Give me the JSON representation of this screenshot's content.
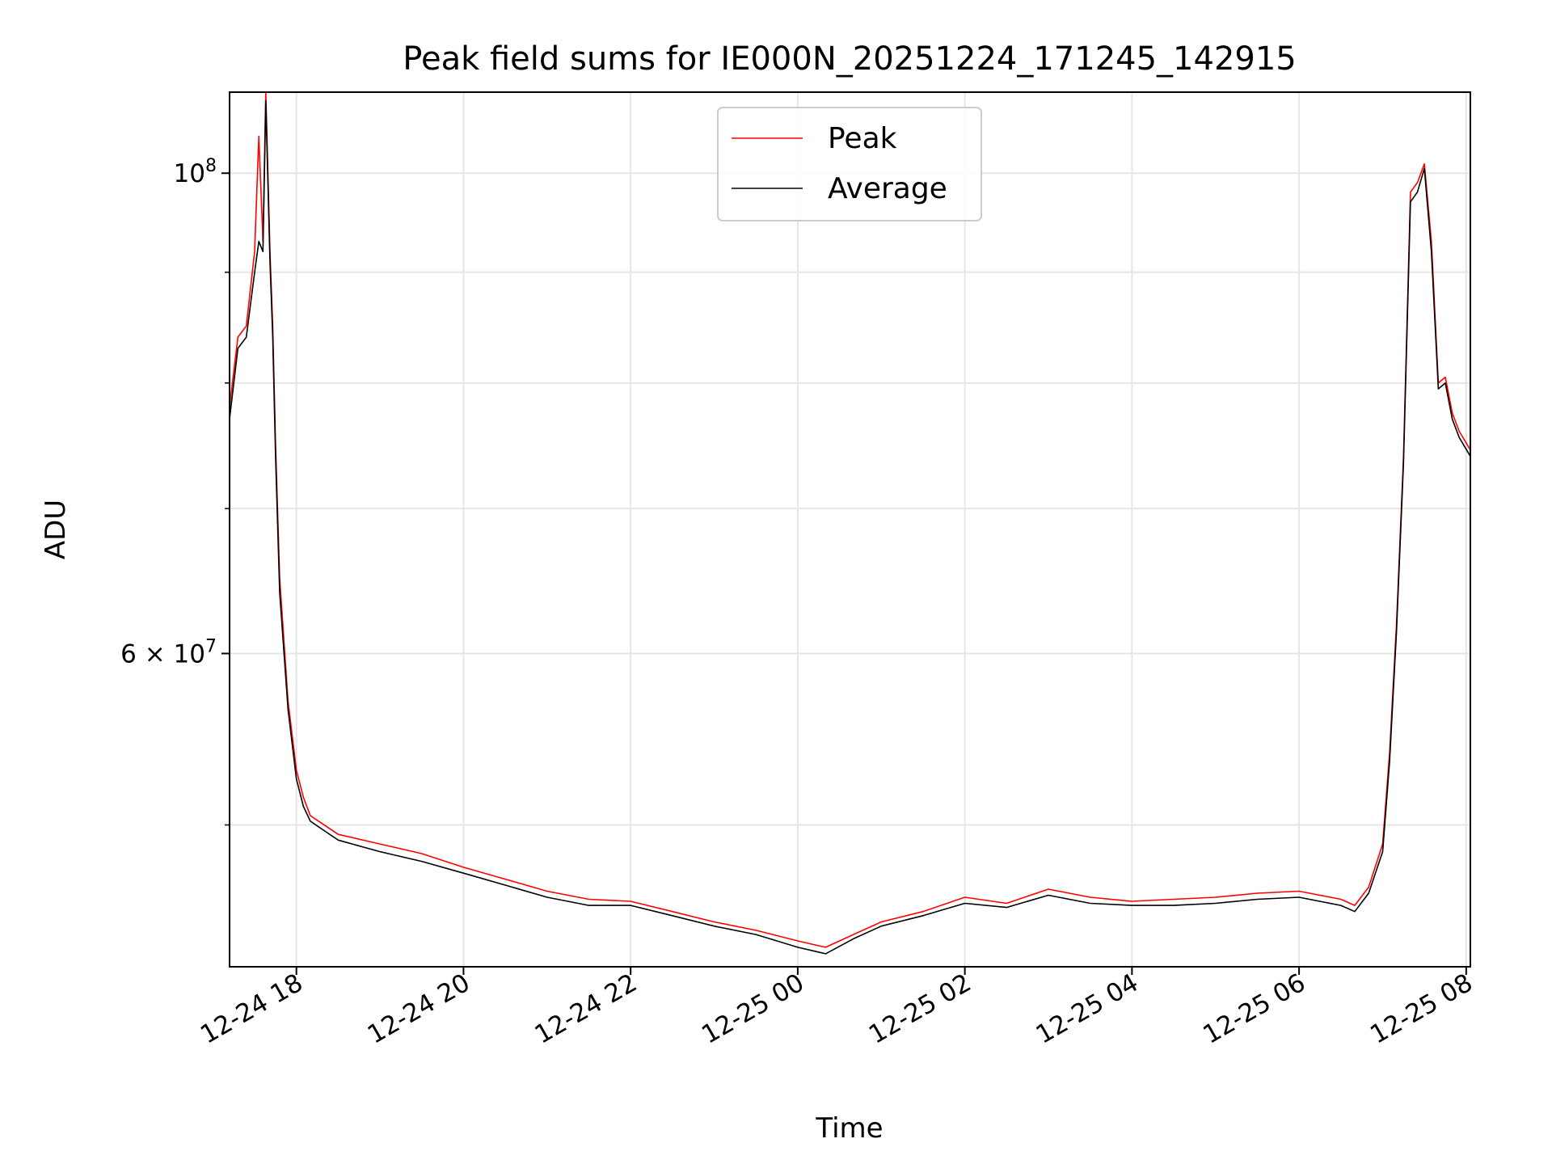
{
  "chart_data": {
    "type": "line",
    "title": "Peak field sums for IE000N_20251224_171245_142915",
    "xlabel": "Time",
    "ylabel": "ADU",
    "yscale": "log",
    "grid": true,
    "legend_position": "upper center",
    "xlim": [
      "2025-12-24 17:12",
      "2025-12-25 08:03"
    ],
    "ylim": [
      43000000,
      109000000
    ],
    "x_ticks": [
      "12-24 18",
      "12-24 20",
      "12-24 22",
      "12-25 00",
      "12-25 02",
      "12-25 04",
      "12-25 06",
      "12-25 08"
    ],
    "x_tick_times": [
      "2025-12-24 18:00",
      "2025-12-24 20:00",
      "2025-12-24 22:00",
      "2025-12-25 00:00",
      "2025-12-25 02:00",
      "2025-12-25 04:00",
      "2025-12-25 06:00",
      "2025-12-25 08:00"
    ],
    "y_ticks": [
      {
        "value": 100000000,
        "base": "10",
        "exp": "8",
        "mult": ""
      },
      {
        "value": 60000000,
        "base": "10",
        "exp": "7",
        "mult": "6 × "
      }
    ],
    "y_minor_ticks": [
      50000000,
      70000000,
      80000000,
      90000000
    ],
    "series": [
      {
        "name": "Peak",
        "color": "#ff0000",
        "x": [
          "2025-12-24 17:12",
          "2025-12-24 17:18",
          "2025-12-24 17:24",
          "2025-12-24 17:30",
          "2025-12-24 17:33",
          "2025-12-24 17:36",
          "2025-12-24 17:38",
          "2025-12-24 17:41",
          "2025-12-24 17:43",
          "2025-12-24 17:45",
          "2025-12-24 17:48",
          "2025-12-24 17:54",
          "2025-12-24 18:00",
          "2025-12-24 18:05",
          "2025-12-24 18:10",
          "2025-12-24 18:20",
          "2025-12-24 18:30",
          "2025-12-24 19:00",
          "2025-12-24 19:30",
          "2025-12-24 20:00",
          "2025-12-24 20:30",
          "2025-12-24 21:00",
          "2025-12-24 21:30",
          "2025-12-24 22:00",
          "2025-12-24 22:30",
          "2025-12-24 23:00",
          "2025-12-24 23:30",
          "2025-12-25 00:00",
          "2025-12-25 00:20",
          "2025-12-25 00:40",
          "2025-12-25 01:00",
          "2025-12-25 01:30",
          "2025-12-25 02:00",
          "2025-12-25 02:30",
          "2025-12-25 03:00",
          "2025-12-25 03:30",
          "2025-12-25 04:00",
          "2025-12-25 04:30",
          "2025-12-25 05:00",
          "2025-12-25 05:30",
          "2025-12-25 06:00",
          "2025-12-25 06:30",
          "2025-12-25 06:40",
          "2025-12-25 06:50",
          "2025-12-25 07:00",
          "2025-12-25 07:05",
          "2025-12-25 07:10",
          "2025-12-25 07:15",
          "2025-12-25 07:20",
          "2025-12-25 07:25",
          "2025-12-25 07:30",
          "2025-12-25 07:35",
          "2025-12-25 07:40",
          "2025-12-25 07:45",
          "2025-12-25 07:50",
          "2025-12-25 07:55",
          "2025-12-25 08:03"
        ],
        "values": [
          78000000,
          84000000,
          85000000,
          92000000,
          104000000,
          93000000,
          109000000,
          92000000,
          85000000,
          75000000,
          65000000,
          57000000,
          53000000,
          51500000,
          50500000,
          50000000,
          49500000,
          49000000,
          48500000,
          47800000,
          47200000,
          46600000,
          46200000,
          46100000,
          45600000,
          45100000,
          44700000,
          44200000,
          43900000,
          44500000,
          45100000,
          45600000,
          46300000,
          46000000,
          46700000,
          46300000,
          46100000,
          46200000,
          46300000,
          46500000,
          46600000,
          46200000,
          45900000,
          46800000,
          49000000,
          54000000,
          62000000,
          74000000,
          98000000,
          99000000,
          101000000,
          93000000,
          80000000,
          80500000,
          77500000,
          76000000,
          74500000
        ]
      },
      {
        "name": "Average",
        "color": "#000000",
        "x": [
          "2025-12-24 17:12",
          "2025-12-24 17:18",
          "2025-12-24 17:24",
          "2025-12-24 17:30",
          "2025-12-24 17:33",
          "2025-12-24 17:36",
          "2025-12-24 17:38",
          "2025-12-24 17:41",
          "2025-12-24 17:43",
          "2025-12-24 17:45",
          "2025-12-24 17:48",
          "2025-12-24 17:54",
          "2025-12-24 18:00",
          "2025-12-24 18:05",
          "2025-12-24 18:10",
          "2025-12-24 18:20",
          "2025-12-24 18:30",
          "2025-12-24 19:00",
          "2025-12-24 19:30",
          "2025-12-24 20:00",
          "2025-12-24 20:30",
          "2025-12-24 21:00",
          "2025-12-24 21:30",
          "2025-12-24 22:00",
          "2025-12-24 22:30",
          "2025-12-24 23:00",
          "2025-12-24 23:30",
          "2025-12-25 00:00",
          "2025-12-25 00:20",
          "2025-12-25 00:40",
          "2025-12-25 01:00",
          "2025-12-25 01:30",
          "2025-12-25 02:00",
          "2025-12-25 02:30",
          "2025-12-25 03:00",
          "2025-12-25 03:30",
          "2025-12-25 04:00",
          "2025-12-25 04:30",
          "2025-12-25 05:00",
          "2025-12-25 05:30",
          "2025-12-25 06:00",
          "2025-12-25 06:30",
          "2025-12-25 06:40",
          "2025-12-25 06:50",
          "2025-12-25 07:00",
          "2025-12-25 07:05",
          "2025-12-25 07:10",
          "2025-12-25 07:15",
          "2025-12-25 07:20",
          "2025-12-25 07:25",
          "2025-12-25 07:30",
          "2025-12-25 07:35",
          "2025-12-25 07:40",
          "2025-12-25 07:45",
          "2025-12-25 07:50",
          "2025-12-25 07:55",
          "2025-12-25 08:03"
        ],
        "values": [
          77000000,
          83000000,
          84000000,
          90000000,
          93000000,
          92000000,
          108000000,
          91000000,
          84000000,
          74000000,
          64000000,
          56500000,
          52500000,
          51000000,
          50200000,
          49700000,
          49200000,
          48600000,
          48100000,
          47500000,
          46900000,
          46300000,
          45900000,
          45900000,
          45400000,
          44900000,
          44500000,
          43900000,
          43600000,
          44300000,
          44900000,
          45400000,
          46000000,
          45800000,
          46400000,
          46000000,
          45900000,
          45900000,
          46000000,
          46200000,
          46300000,
          45900000,
          45600000,
          46500000,
          48600000,
          53500000,
          61500000,
          73500000,
          97000000,
          98000000,
          100500000,
          92000000,
          79500000,
          80000000,
          77000000,
          75500000,
          74000000
        ]
      }
    ]
  }
}
